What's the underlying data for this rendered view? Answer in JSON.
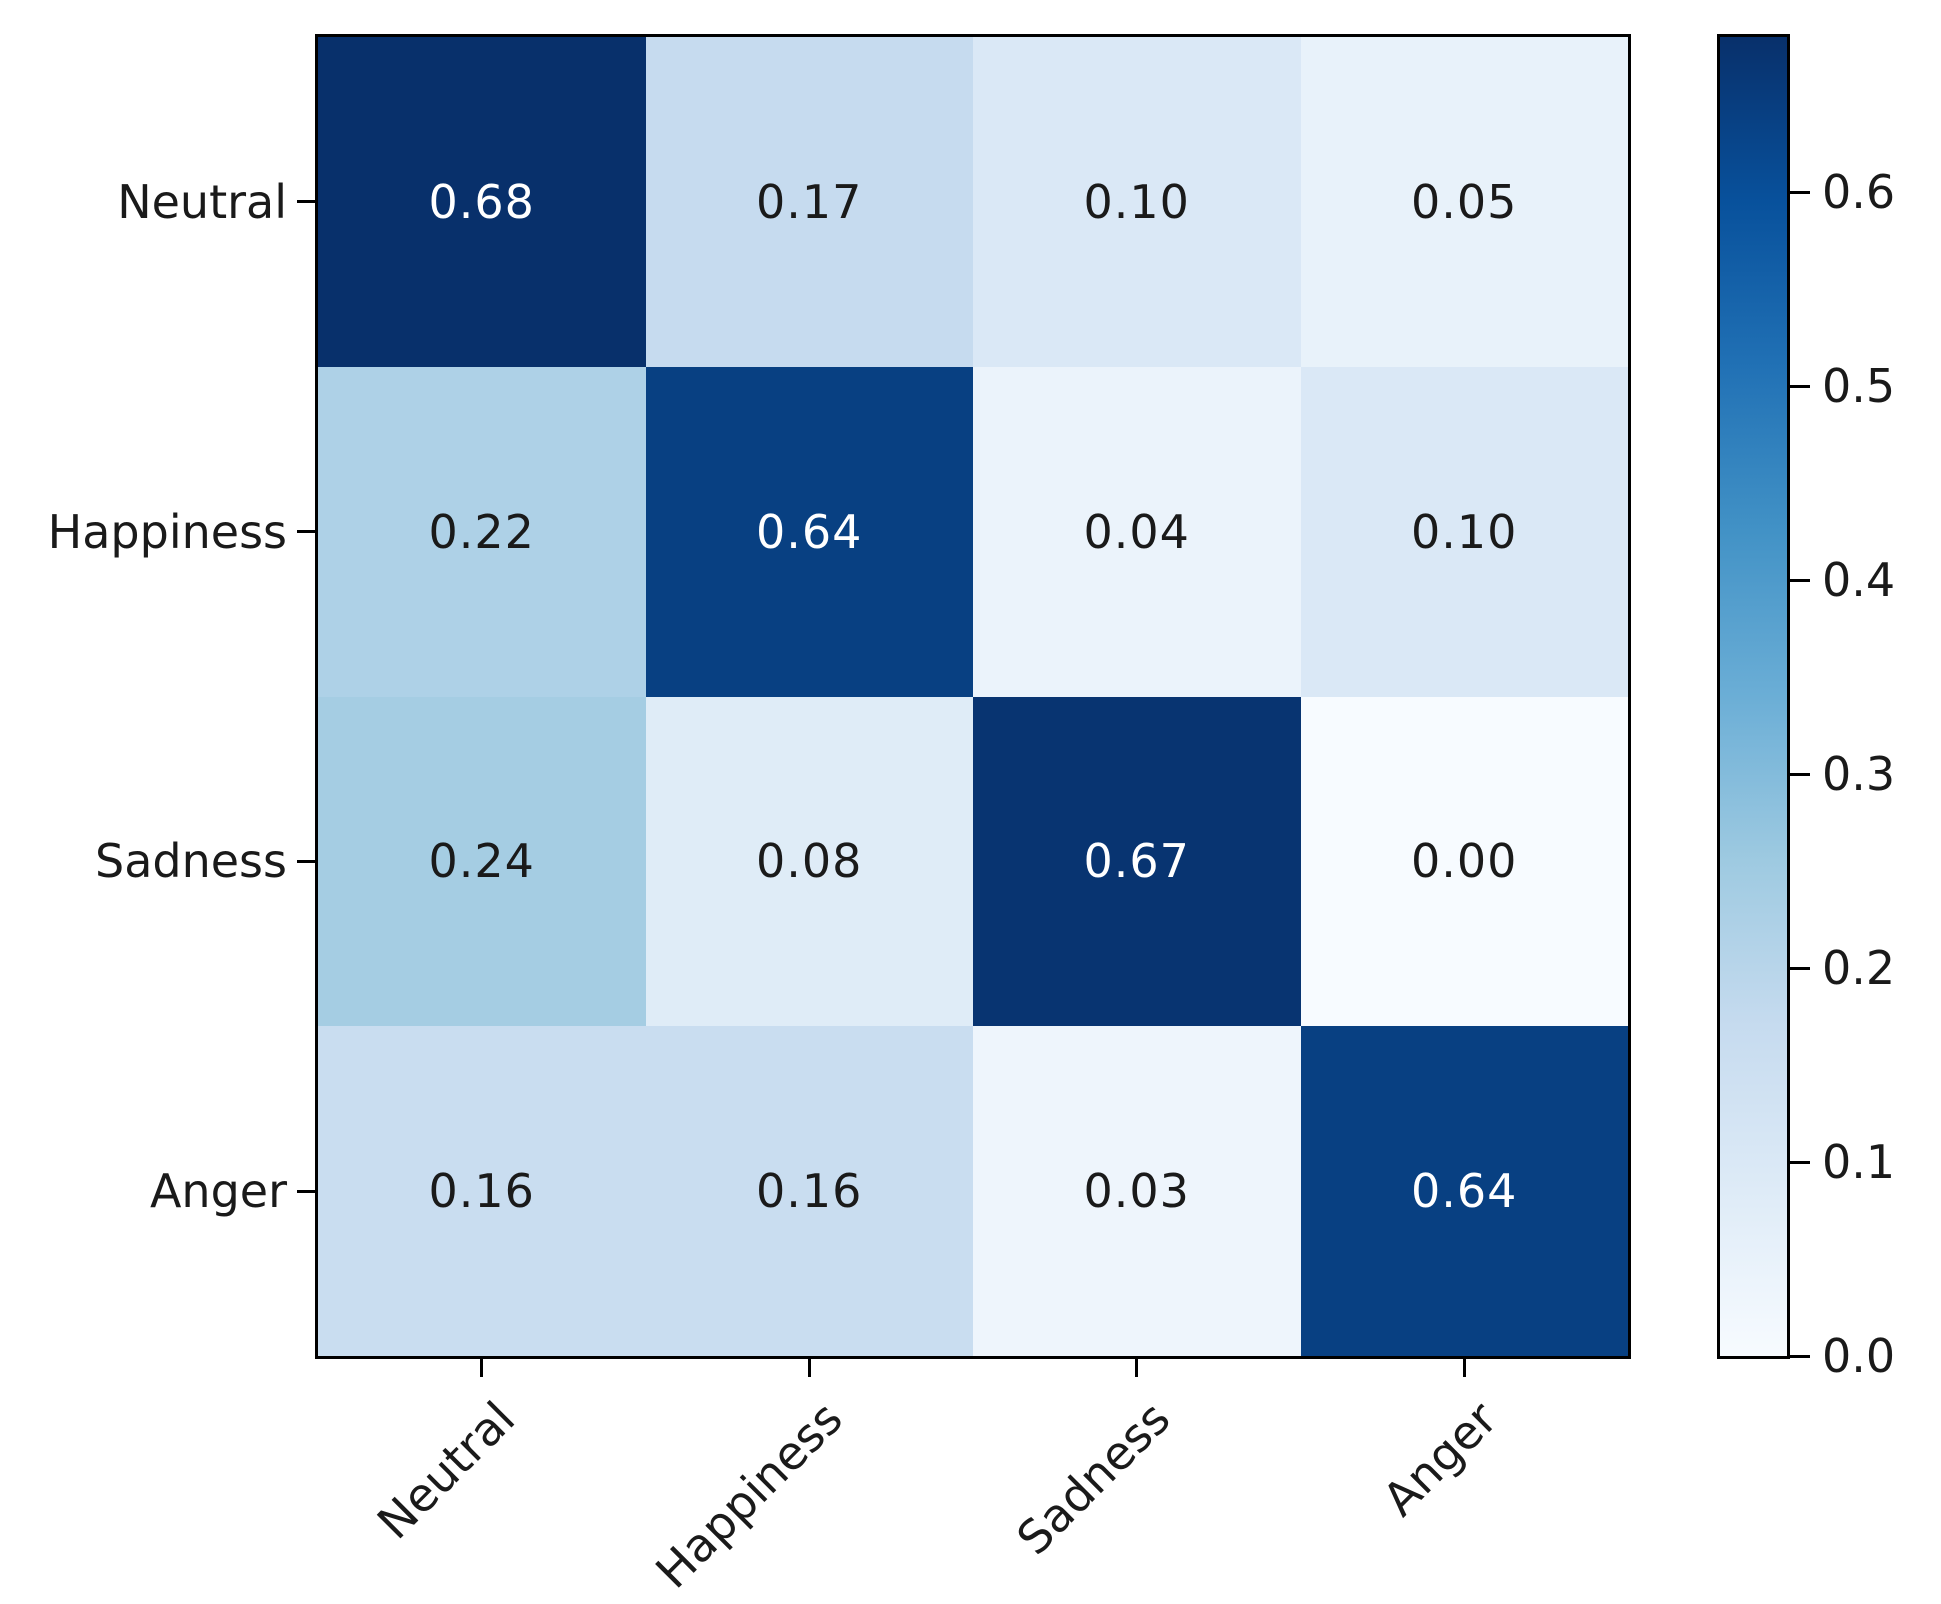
{
  "chart_data": {
    "type": "heatmap",
    "title": "",
    "xlabel": "",
    "ylabel": "",
    "x_categories": [
      "Neutral",
      "Happiness",
      "Sadness",
      "Anger"
    ],
    "y_categories": [
      "Neutral",
      "Happiness",
      "Sadness",
      "Anger"
    ],
    "matrix": [
      [
        0.68,
        0.17,
        0.1,
        0.05
      ],
      [
        0.22,
        0.64,
        0.04,
        0.1
      ],
      [
        0.24,
        0.08,
        0.67,
        0.0
      ],
      [
        0.16,
        0.16,
        0.03,
        0.64
      ]
    ],
    "cell_labels": [
      [
        "0.68",
        "0.17",
        "0.10",
        "0.05"
      ],
      [
        "0.22",
        "0.64",
        "0.04",
        "0.10"
      ],
      [
        "0.24",
        "0.08",
        "0.67",
        "0.00"
      ],
      [
        "0.16",
        "0.16",
        "0.03",
        "0.64"
      ]
    ],
    "vmin": 0.0,
    "vmax": 0.68,
    "colormap": "Blues",
    "colormap_anchors": [
      "#f7fbff",
      "#deebf7",
      "#c6dbef",
      "#9ecae1",
      "#6baed6",
      "#4292c6",
      "#2171b5",
      "#08519c",
      "#08306b"
    ],
    "colorbar_ticks": [
      {
        "label": "0.0",
        "value": 0.0
      },
      {
        "label": "0.1",
        "value": 0.1
      },
      {
        "label": "0.2",
        "value": 0.2
      },
      {
        "label": "0.3",
        "value": 0.3
      },
      {
        "label": "0.4",
        "value": 0.4
      },
      {
        "label": "0.5",
        "value": 0.5
      },
      {
        "label": "0.6",
        "value": 0.6
      }
    ],
    "colorbar_position": "right",
    "x_tick_rotation_deg": 45,
    "grid": false,
    "cell_text_color_on_dark": "#ffffff",
    "cell_text_color_on_light": "#1a1a1a",
    "axis_color": "#000000"
  }
}
